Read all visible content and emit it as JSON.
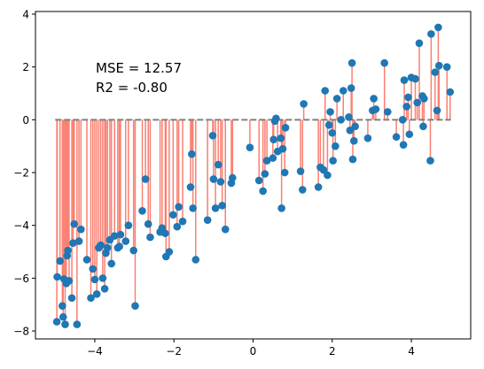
{
  "chart_data": {
    "type": "scatter",
    "title": "",
    "xlabel": "",
    "ylabel": "",
    "xlim": [
      -5.5,
      5.5
    ],
    "ylim": [
      -8.3,
      4.1
    ],
    "xticks": [
      -4,
      -2,
      0,
      2,
      4
    ],
    "yticks": [
      -8,
      -6,
      -4,
      -2,
      0,
      2,
      4
    ],
    "xtick_labels": [
      "−4",
      "−2",
      "0",
      "2",
      "4"
    ],
    "ytick_labels": [
      "−8",
      "−6",
      "−4",
      "−2",
      "0",
      "2",
      "4"
    ],
    "grid": false,
    "annotations": [
      "MSE = 12.57",
      "R2 = -0.80"
    ],
    "prediction_line": {
      "y": 0,
      "x_range": [
        -5,
        5
      ],
      "style": "dashed",
      "color": "#808080"
    },
    "residual_color": "#fa8072",
    "point_color": "#1f77b4",
    "points": [
      [
        -4.96,
        -7.65
      ],
      [
        -4.95,
        -5.95
      ],
      [
        -4.88,
        -5.35
      ],
      [
        -4.82,
        -7.05
      ],
      [
        -4.8,
        -7.47
      ],
      [
        -4.78,
        -6.03
      ],
      [
        -4.75,
        -7.75
      ],
      [
        -4.72,
        -6.2
      ],
      [
        -4.7,
        -5.15
      ],
      [
        -4.68,
        -4.95
      ],
      [
        -4.65,
        -6.1
      ],
      [
        -4.58,
        -6.75
      ],
      [
        -4.55,
        -4.67
      ],
      [
        -4.52,
        -3.95
      ],
      [
        -4.45,
        -7.75
      ],
      [
        -4.4,
        -4.6
      ],
      [
        -4.35,
        -4.15
      ],
      [
        -4.2,
        -5.3
      ],
      [
        -4.1,
        -6.75
      ],
      [
        -4.05,
        -5.65
      ],
      [
        -4.0,
        -6.05
      ],
      [
        -3.95,
        -6.6
      ],
      [
        -3.9,
        -4.85
      ],
      [
        -3.85,
        -4.75
      ],
      [
        -3.8,
        -6.0
      ],
      [
        -3.75,
        -6.4
      ],
      [
        -3.72,
        -5.05
      ],
      [
        -3.68,
        -4.85
      ],
      [
        -3.62,
        -4.55
      ],
      [
        -3.58,
        -5.45
      ],
      [
        -3.5,
        -4.4
      ],
      [
        -3.42,
        -4.85
      ],
      [
        -3.38,
        -4.8
      ],
      [
        -3.35,
        -4.35
      ],
      [
        -3.22,
        -4.6
      ],
      [
        -3.15,
        -4.0
      ],
      [
        -3.02,
        -4.95
      ],
      [
        -2.98,
        -7.05
      ],
      [
        -2.8,
        -3.45
      ],
      [
        -2.72,
        -2.25
      ],
      [
        -2.65,
        -3.95
      ],
      [
        -2.6,
        -4.45
      ],
      [
        -2.35,
        -4.25
      ],
      [
        -2.3,
        -4.1
      ],
      [
        -2.22,
        -4.3
      ],
      [
        -2.2,
        -5.18
      ],
      [
        -2.12,
        -5.0
      ],
      [
        -2.02,
        -3.6
      ],
      [
        -1.92,
        -4.05
      ],
      [
        -1.88,
        -3.3
      ],
      [
        -1.78,
        -3.85
      ],
      [
        -1.58,
        -2.55
      ],
      [
        -1.55,
        -1.3
      ],
      [
        -1.52,
        -3.35
      ],
      [
        -1.45,
        -5.3
      ],
      [
        -1.15,
        -3.8
      ],
      [
        -1.02,
        -0.6
      ],
      [
        -1.0,
        -2.25
      ],
      [
        -0.95,
        -3.35
      ],
      [
        -0.88,
        -1.7
      ],
      [
        -0.82,
        -2.35
      ],
      [
        -0.78,
        -3.25
      ],
      [
        -0.7,
        -4.15
      ],
      [
        -0.55,
        -2.4
      ],
      [
        -0.52,
        -2.2
      ],
      [
        -0.08,
        -1.05
      ],
      [
        0.15,
        -2.3
      ],
      [
        0.25,
        -2.7
      ],
      [
        0.3,
        -2.05
      ],
      [
        0.35,
        -1.55
      ],
      [
        0.5,
        -1.45
      ],
      [
        0.52,
        -0.75
      ],
      [
        0.55,
        -0.05
      ],
      [
        0.58,
        0.05
      ],
      [
        0.62,
        -1.2
      ],
      [
        0.7,
        -0.7
      ],
      [
        0.72,
        -3.35
      ],
      [
        0.75,
        -1.1
      ],
      [
        0.8,
        -2.0
      ],
      [
        0.82,
        -0.3
      ],
      [
        1.2,
        -1.95
      ],
      [
        1.25,
        -2.65
      ],
      [
        1.28,
        0.6
      ],
      [
        1.65,
        -2.55
      ],
      [
        1.7,
        -1.8
      ],
      [
        1.78,
        -1.9
      ],
      [
        1.82,
        1.1
      ],
      [
        1.88,
        -2.1
      ],
      [
        1.92,
        -0.2
      ],
      [
        1.95,
        0.3
      ],
      [
        2.0,
        -0.5
      ],
      [
        2.02,
        -1.55
      ],
      [
        2.08,
        -1.0
      ],
      [
        2.12,
        0.8
      ],
      [
        2.22,
        0.0
      ],
      [
        2.28,
        1.1
      ],
      [
        2.42,
        0.1
      ],
      [
        2.45,
        -0.4
      ],
      [
        2.48,
        1.2
      ],
      [
        2.5,
        2.15
      ],
      [
        2.52,
        -1.5
      ],
      [
        2.55,
        -0.8
      ],
      [
        2.58,
        -0.25
      ],
      [
        2.9,
        -0.7
      ],
      [
        3.02,
        0.35
      ],
      [
        3.05,
        0.8
      ],
      [
        3.1,
        0.4
      ],
      [
        3.32,
        2.15
      ],
      [
        3.4,
        0.3
      ],
      [
        3.62,
        -0.65
      ],
      [
        3.78,
        0.0
      ],
      [
        3.8,
        -0.95
      ],
      [
        3.82,
        1.5
      ],
      [
        3.88,
        0.5
      ],
      [
        3.92,
        0.85
      ],
      [
        3.95,
        -0.55
      ],
      [
        4.0,
        1.6
      ],
      [
        4.1,
        1.55
      ],
      [
        4.15,
        0.65
      ],
      [
        4.2,
        2.9
      ],
      [
        4.28,
        0.9
      ],
      [
        4.3,
        -0.25
      ],
      [
        4.32,
        0.8
      ],
      [
        4.48,
        -1.55
      ],
      [
        4.5,
        3.25
      ],
      [
        4.6,
        1.8
      ],
      [
        4.65,
        0.35
      ],
      [
        4.7,
        2.05
      ],
      [
        4.68,
        3.5
      ],
      [
        4.9,
        2.0
      ],
      [
        4.98,
        1.05
      ]
    ]
  }
}
